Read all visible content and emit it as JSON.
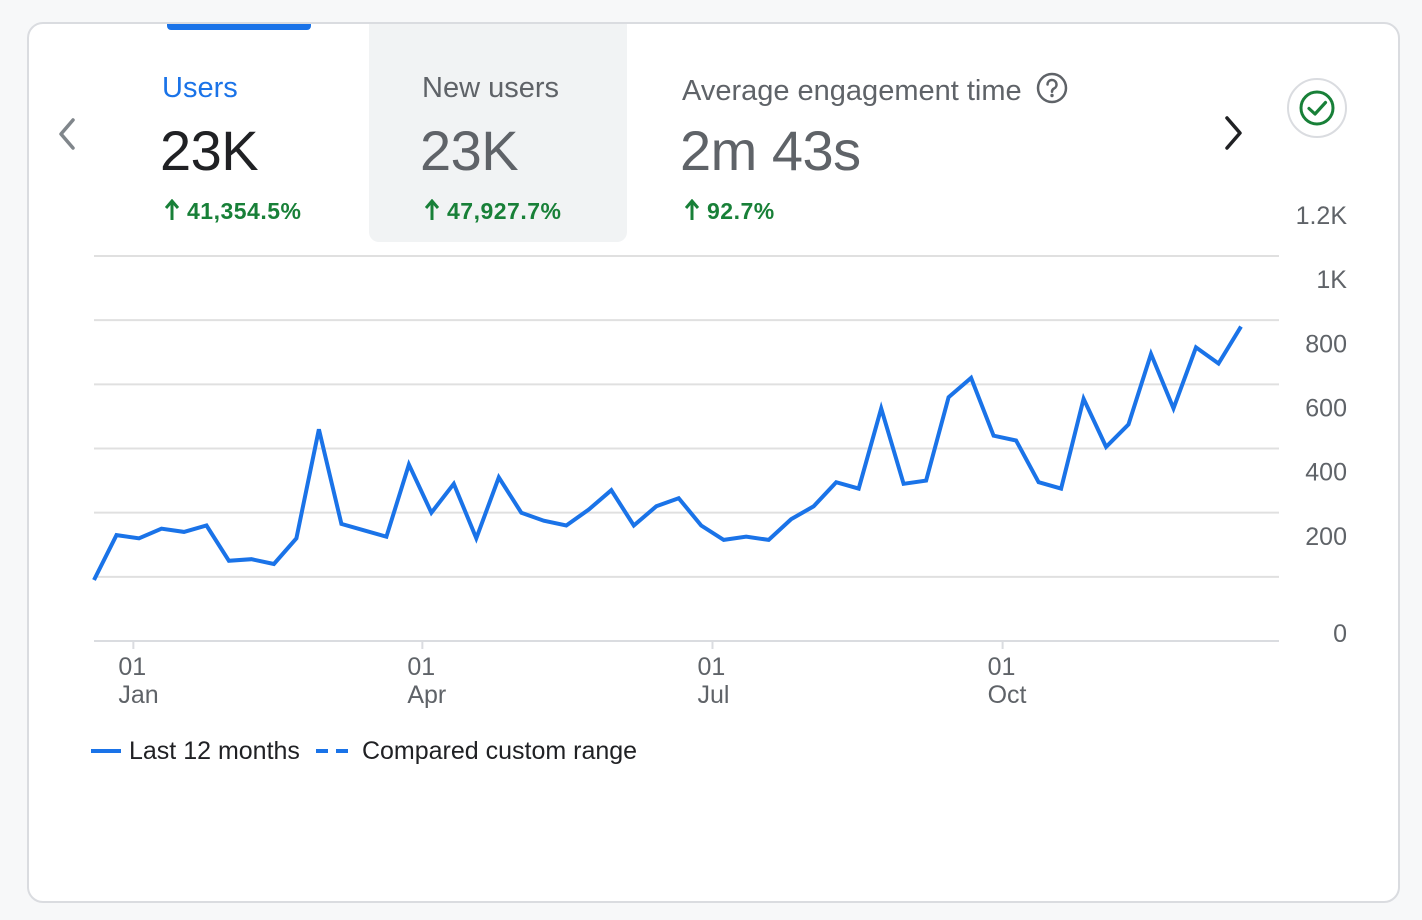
{
  "tabs": [
    {
      "label": "Users",
      "value": "23K",
      "change": "41,354.5%",
      "selected": true
    },
    {
      "label": "New users",
      "value": "23K",
      "change": "47,927.7%",
      "hovered": true
    },
    {
      "label": "Average engagement time",
      "value": "2m 43s",
      "change": "92.7%"
    }
  ],
  "icons": {
    "prev": "chevron-left-icon",
    "next": "chevron-right-icon",
    "help": "help-circle-icon",
    "status": "check-circle-icon"
  },
  "colors": {
    "accent": "#1a73e8",
    "positive": "#188038",
    "text_primary": "#202124",
    "text_secondary": "#5f6368",
    "grid": "#e0e0e0"
  },
  "chart_data": {
    "type": "line",
    "title": "",
    "xlabel": "",
    "ylabel": "",
    "ylim": [
      0,
      1200
    ],
    "y_ticks": [
      "0",
      "200",
      "400",
      "600",
      "800",
      "1K",
      "1.2K"
    ],
    "y_tick_values": [
      0,
      200,
      400,
      600,
      800,
      1000,
      1200
    ],
    "x_ticks": [
      {
        "day": "01",
        "month": "Jan",
        "index": 1.75
      },
      {
        "day": "01",
        "month": "Apr",
        "index": 14.6
      },
      {
        "day": "01",
        "month": "Jul",
        "index": 27.5
      },
      {
        "day": "01",
        "month": "Oct",
        "index": 40.4
      }
    ],
    "series": [
      {
        "name": "Last 12 months",
        "style": "solid",
        "values": [
          190,
          330,
          320,
          350,
          340,
          360,
          250,
          255,
          240,
          320,
          660,
          365,
          345,
          325,
          550,
          400,
          490,
          320,
          510,
          400,
          375,
          360,
          410,
          470,
          360,
          420,
          445,
          360,
          315,
          325,
          315,
          380,
          420,
          495,
          475,
          725,
          490,
          500,
          760,
          820,
          640,
          625,
          495,
          475,
          755,
          605,
          675,
          895,
          725,
          915,
          865,
          980
        ]
      },
      {
        "name": "Compared custom range",
        "style": "dashed",
        "values": []
      }
    ],
    "legend": [
      "Last 12 months",
      "Compared custom range"
    ],
    "legend_position": "bottom-left"
  }
}
